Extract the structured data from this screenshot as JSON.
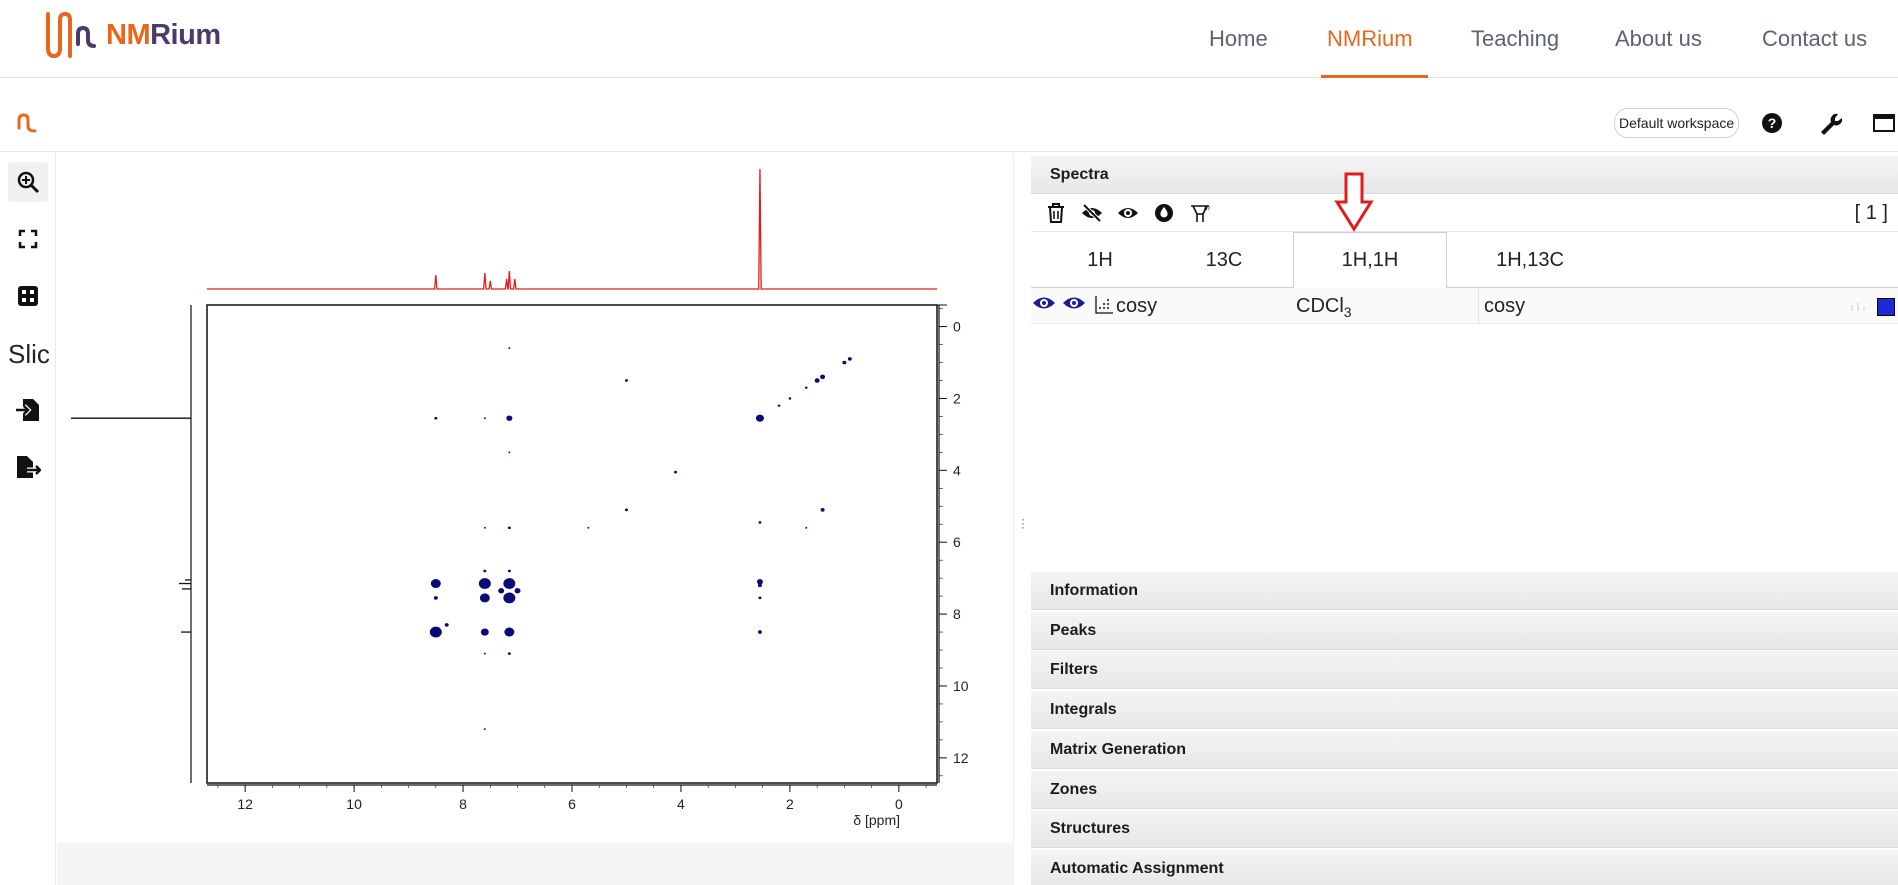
{
  "header": {
    "brand_nm": "NM",
    "brand_rium": "Rium",
    "nav": [
      "Home",
      "NMRium",
      "Teaching",
      "About us",
      "Contact us"
    ],
    "active_nav": "NMRium"
  },
  "toolbar": {
    "workspace_label": "Default workspace",
    "icons": [
      "help-icon",
      "wrench-icon",
      "window-icon"
    ]
  },
  "left_tools": {
    "icons": [
      "zoom-icon",
      "fullscreen-icon",
      "grid-icon",
      "slice-icon",
      "import-icon",
      "export-icon"
    ],
    "slice_label": "Slic"
  },
  "plot": {
    "x_ticks": [
      "12",
      "10",
      "8",
      "6",
      "4",
      "2",
      "0"
    ],
    "y_ticks": [
      "0",
      "2",
      "4",
      "6",
      "8",
      "10",
      "12"
    ],
    "x_label": "δ [ppm]",
    "spectrum_color": "#e41a1c",
    "contour_color": "#0a0a7a"
  },
  "panel": {
    "spectra_title": "Spectra",
    "count": "[ 1 ]",
    "tabs": [
      "1H",
      "13C",
      "1H,1H",
      "1H,13C"
    ],
    "active_tab": "1H,1H",
    "row": {
      "name": "cosy",
      "solvent_main": "CDCl",
      "solvent_sub": "3",
      "experiment": "cosy",
      "color": "#1c2bd6"
    },
    "sections": [
      "Information",
      "Peaks",
      "Filters",
      "Integrals",
      "Matrix Generation",
      "Zones",
      "Structures",
      "Automatic Assignment"
    ]
  },
  "annotation": {
    "arrow_color": "#e11c1c"
  }
}
